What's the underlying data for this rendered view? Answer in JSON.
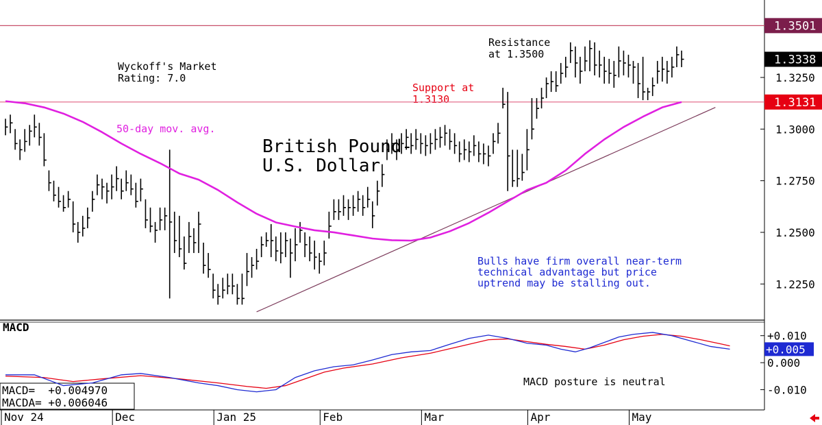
{
  "chart_data": {
    "type": "bar",
    "title": "British Pound-",
    "subtitle": "U.S. Dollar",
    "price_axis": {
      "ylim": [
        1.2075,
        1.3625
      ],
      "ticks": [
        "1.3250",
        "1.3000",
        "1.2750",
        "1.2500",
        "1.2250"
      ],
      "tick_values": [
        1.325,
        1.3,
        1.275,
        1.25,
        1.225
      ]
    },
    "x_axis": {
      "months": [
        "Nov 24",
        "Dec",
        "Jan 25",
        "Feb",
        "Mar",
        "Apr",
        "May"
      ],
      "month_start_index": [
        0,
        23,
        44,
        66,
        87,
        109,
        130
      ]
    },
    "price_labels": [
      {
        "text": "1.3501",
        "value": 1.3501,
        "color": "#7B1E4B"
      },
      {
        "text": "1.3338",
        "value": 1.3338,
        "color": "#000000"
      },
      {
        "text": "1.3131",
        "value": 1.3131,
        "color": "#E60012"
      }
    ],
    "horizontal_lines": [
      {
        "value": 1.3501,
        "color": "#C8506A"
      },
      {
        "value": 1.3131,
        "color": "#E06080"
      }
    ],
    "trendline": {
      "from": {
        "index": 52,
        "value": 1.2115
      },
      "to": {
        "index": 147,
        "value": 1.3105
      },
      "color": "#7B3A5A"
    },
    "moving_average": {
      "name": "50-day mov. avg.",
      "color": "#E020E0",
      "points": [
        [
          0,
          1.3135
        ],
        [
          4,
          1.3125
        ],
        [
          8,
          1.3105
        ],
        [
          12,
          1.3075
        ],
        [
          16,
          1.3035
        ],
        [
          20,
          1.2985
        ],
        [
          24,
          1.293
        ],
        [
          28,
          1.288
        ],
        [
          32,
          1.2835
        ],
        [
          36,
          1.2785
        ],
        [
          40,
          1.2755
        ],
        [
          44,
          1.2705
        ],
        [
          48,
          1.2645
        ],
        [
          52,
          1.259
        ],
        [
          56,
          1.2548
        ],
        [
          60,
          1.2528
        ],
        [
          64,
          1.251
        ],
        [
          68,
          1.25
        ],
        [
          72,
          1.2485
        ],
        [
          76,
          1.247
        ],
        [
          80,
          1.2462
        ],
        [
          84,
          1.246
        ],
        [
          88,
          1.2475
        ],
        [
          92,
          1.2505
        ],
        [
          96,
          1.2545
        ],
        [
          100,
          1.2595
        ],
        [
          104,
          1.265
        ],
        [
          108,
          1.2705
        ],
        [
          112,
          1.274
        ],
        [
          116,
          1.28
        ],
        [
          120,
          1.288
        ],
        [
          124,
          1.295
        ],
        [
          128,
          1.301
        ],
        [
          132,
          1.306
        ],
        [
          136,
          1.3105
        ],
        [
          140,
          1.3131
        ]
      ]
    },
    "ohlc": {
      "highs": [
        1.305,
        1.307,
        1.3,
        1.295,
        1.3,
        1.302,
        1.307,
        1.303,
        1.298,
        1.28,
        1.275,
        1.272,
        1.268,
        1.27,
        1.265,
        1.255,
        1.258,
        1.262,
        1.27,
        1.278,
        1.276,
        1.274,
        1.278,
        1.282,
        1.276,
        1.28,
        1.278,
        1.274,
        1.276,
        1.266,
        1.262,
        1.255,
        1.262,
        1.262,
        1.29,
        1.26,
        1.258,
        1.248,
        1.255,
        1.252,
        1.26,
        1.245,
        1.24,
        1.23,
        1.225,
        1.228,
        1.23,
        1.23,
        1.225,
        1.23,
        1.24,
        1.238,
        1.242,
        1.248,
        1.25,
        1.254,
        1.248,
        1.25,
        1.25,
        1.247,
        1.252,
        1.255,
        1.25,
        1.248,
        1.246,
        1.24,
        1.246,
        1.26,
        1.266,
        1.266,
        1.268,
        1.266,
        1.268,
        1.27,
        1.268,
        1.272,
        1.265,
        1.275,
        1.283,
        1.295,
        1.298,
        1.295,
        1.298,
        1.3,
        1.298,
        1.3,
        1.298,
        1.297,
        1.298,
        1.3,
        1.301,
        1.302,
        1.3,
        1.298,
        1.294,
        1.295,
        1.294,
        1.297,
        1.294,
        1.293,
        1.292,
        1.298,
        1.303,
        1.32,
        1.318,
        1.29,
        1.29,
        1.288,
        1.3,
        1.315,
        1.315,
        1.32,
        1.325,
        1.328,
        1.328,
        1.332,
        1.335,
        1.342,
        1.34,
        1.335,
        1.34,
        1.343,
        1.342,
        1.338,
        1.335,
        1.334,
        1.333,
        1.34,
        1.338,
        1.336,
        1.333,
        1.332,
        1.335,
        1.32,
        1.325,
        1.333,
        1.335,
        1.333,
        1.335,
        1.34,
        1.338
      ],
      "lows": [
        1.297,
        1.298,
        1.29,
        1.285,
        1.289,
        1.292,
        1.296,
        1.292,
        1.282,
        1.27,
        1.265,
        1.262,
        1.26,
        1.262,
        1.25,
        1.245,
        1.248,
        1.252,
        1.26,
        1.268,
        1.266,
        1.264,
        1.266,
        1.27,
        1.266,
        1.27,
        1.268,
        1.262,
        1.265,
        1.252,
        1.25,
        1.245,
        1.251,
        1.251,
        1.218,
        1.24,
        1.238,
        1.232,
        1.24,
        1.24,
        1.24,
        1.23,
        1.228,
        1.218,
        1.215,
        1.218,
        1.22,
        1.22,
        1.215,
        1.215,
        1.224,
        1.228,
        1.232,
        1.238,
        1.243,
        1.238,
        1.236,
        1.235,
        1.238,
        1.228,
        1.236,
        1.245,
        1.238,
        1.236,
        1.232,
        1.23,
        1.234,
        1.247,
        1.256,
        1.256,
        1.258,
        1.256,
        1.258,
        1.26,
        1.258,
        1.262,
        1.252,
        1.263,
        1.272,
        1.285,
        1.288,
        1.285,
        1.288,
        1.29,
        1.288,
        1.29,
        1.288,
        1.287,
        1.288,
        1.29,
        1.291,
        1.292,
        1.29,
        1.288,
        1.284,
        1.285,
        1.284,
        1.287,
        1.284,
        1.283,
        1.282,
        1.288,
        1.293,
        1.31,
        1.27,
        1.272,
        1.272,
        1.275,
        1.28,
        1.295,
        1.305,
        1.31,
        1.315,
        1.318,
        1.318,
        1.322,
        1.325,
        1.332,
        1.325,
        1.322,
        1.328,
        1.328,
        1.326,
        1.325,
        1.322,
        1.322,
        1.32,
        1.325,
        1.326,
        1.325,
        1.322,
        1.315,
        1.314,
        1.314,
        1.316,
        1.322,
        1.323,
        1.322,
        1.325,
        1.33,
        1.33
      ],
      "closes": [
        1.301,
        1.303,
        1.293,
        1.29,
        1.294,
        1.299,
        1.301,
        1.296,
        1.285,
        1.274,
        1.268,
        1.265,
        1.262,
        1.266,
        1.254,
        1.25,
        1.252,
        1.257,
        1.266,
        1.273,
        1.272,
        1.27,
        1.272,
        1.276,
        1.27,
        1.274,
        1.271,
        1.265,
        1.271,
        1.256,
        1.253,
        1.251,
        1.256,
        1.258,
        1.255,
        1.246,
        1.242,
        1.235,
        1.248,
        1.245,
        1.254,
        1.234,
        1.232,
        1.222,
        1.219,
        1.222,
        1.224,
        1.224,
        1.218,
        1.218,
        1.231,
        1.234,
        1.236,
        1.244,
        1.246,
        1.246,
        1.241,
        1.24,
        1.246,
        1.24,
        1.244,
        1.251,
        1.244,
        1.24,
        1.238,
        1.236,
        1.24,
        1.253,
        1.26,
        1.26,
        1.262,
        1.262,
        1.262,
        1.266,
        1.262,
        1.266,
        1.258,
        1.27,
        1.278,
        1.29,
        1.293,
        1.29,
        1.293,
        1.296,
        1.292,
        1.295,
        1.293,
        1.292,
        1.293,
        1.295,
        1.296,
        1.298,
        1.294,
        1.292,
        1.288,
        1.29,
        1.289,
        1.292,
        1.288,
        1.288,
        1.287,
        1.294,
        1.298,
        1.312,
        1.287,
        1.275,
        1.276,
        1.279,
        1.29,
        1.3,
        1.31,
        1.315,
        1.322,
        1.323,
        1.321,
        1.327,
        1.33,
        1.338,
        1.332,
        1.328,
        1.333,
        1.339,
        1.331,
        1.331,
        1.328,
        1.327,
        1.326,
        1.333,
        1.332,
        1.331,
        1.33,
        1.322,
        1.318,
        1.318,
        1.321,
        1.328,
        1.329,
        1.328,
        1.33,
        1.336,
        1.3338
      ]
    },
    "macd": {
      "title": "MACD",
      "ylim": [
        -0.0175,
        0.015
      ],
      "ticks": [
        "+0.010",
        "0.000",
        "-0.010"
      ],
      "tick_values": [
        0.01,
        0.0,
        -0.01
      ],
      "readout_lines": [
        "MACD=  +0.004970",
        "MACDA= +0.006046"
      ],
      "price_labels": [
        {
          "text": "+0.005",
          "value": 0.005,
          "color": "#1E2AD2"
        },
        {
          "value": 0.006,
          "color": "#E60012"
        }
      ],
      "macd_line": {
        "color": "#1E2AD2",
        "points": [
          [
            0,
            -0.0045
          ],
          [
            6,
            -0.0045
          ],
          [
            12,
            -0.0085
          ],
          [
            18,
            -0.0075
          ],
          [
            24,
            -0.0045
          ],
          [
            28,
            -0.004
          ],
          [
            34,
            -0.0055
          ],
          [
            40,
            -0.0075
          ],
          [
            44,
            -0.0085
          ],
          [
            48,
            -0.01
          ],
          [
            52,
            -0.0108
          ],
          [
            56,
            -0.01
          ],
          [
            60,
            -0.0055
          ],
          [
            64,
            -0.003
          ],
          [
            68,
            -0.0015
          ],
          [
            72,
            -0.0008
          ],
          [
            76,
            0.001
          ],
          [
            80,
            0.003
          ],
          [
            84,
            0.004
          ],
          [
            88,
            0.0045
          ],
          [
            92,
            0.0068
          ],
          [
            96,
            0.009
          ],
          [
            100,
            0.0102
          ],
          [
            104,
            0.009
          ],
          [
            108,
            0.0072
          ],
          [
            112,
            0.0065
          ],
          [
            115,
            0.005
          ],
          [
            118,
            0.004
          ],
          [
            121,
            0.0055
          ],
          [
            124,
            0.0075
          ],
          [
            127,
            0.0095
          ],
          [
            130,
            0.0105
          ],
          [
            134,
            0.0112
          ],
          [
            138,
            0.01
          ],
          [
            142,
            0.008
          ],
          [
            146,
            0.006
          ],
          [
            150,
            0.005
          ]
        ]
      },
      "signal_line": {
        "color": "#E60012",
        "points": [
          [
            0,
            -0.005
          ],
          [
            8,
            -0.0055
          ],
          [
            14,
            -0.007
          ],
          [
            20,
            -0.006
          ],
          [
            28,
            -0.0048
          ],
          [
            36,
            -0.006
          ],
          [
            44,
            -0.0075
          ],
          [
            50,
            -0.0088
          ],
          [
            54,
            -0.0095
          ],
          [
            58,
            -0.0085
          ],
          [
            62,
            -0.006
          ],
          [
            66,
            -0.0035
          ],
          [
            70,
            -0.002
          ],
          [
            76,
            -0.0005
          ],
          [
            82,
            0.0018
          ],
          [
            88,
            0.0035
          ],
          [
            94,
            0.006
          ],
          [
            100,
            0.0085
          ],
          [
            104,
            0.0088
          ],
          [
            108,
            0.0078
          ],
          [
            112,
            0.0068
          ],
          [
            116,
            0.006
          ],
          [
            120,
            0.005
          ],
          [
            124,
            0.0065
          ],
          [
            128,
            0.0085
          ],
          [
            132,
            0.0098
          ],
          [
            136,
            0.0105
          ],
          [
            140,
            0.0098
          ],
          [
            144,
            0.0085
          ],
          [
            148,
            0.007
          ],
          [
            150,
            0.0062
          ]
        ]
      },
      "annotation": "MACD posture is neutral"
    },
    "annotations": {
      "wyckoff": [
        "Wyckoff's Market",
        "Rating: 7.0"
      ],
      "resistance": [
        "Resistance",
        "at 1.3500"
      ],
      "support": [
        "Support at",
        "1.3130"
      ],
      "moving_average": "50-day mov. avg.",
      "commentary": [
        "Bulls have firm overall near-term",
        "technical advantage but price",
        "uptrend may be stalling out."
      ]
    }
  }
}
